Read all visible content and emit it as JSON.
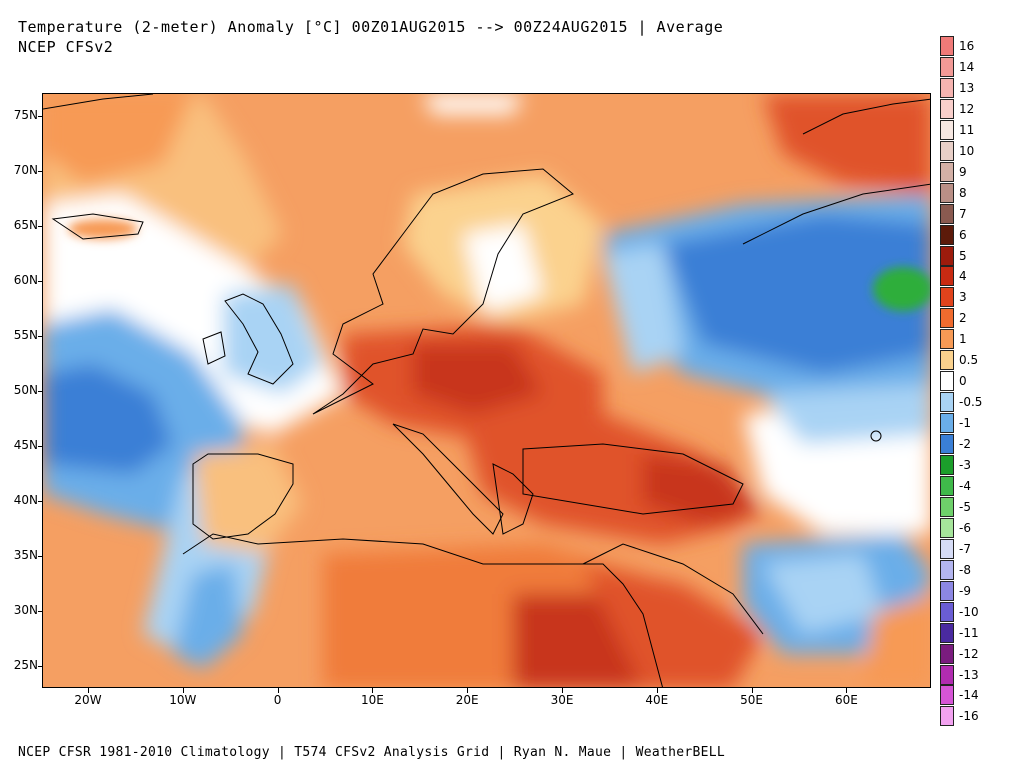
{
  "title_line1": "Temperature (2-meter) Anomaly  [°C] 00Z01AUG2015 --> 00Z24AUG2015 | Average",
  "title_line2": "NCEP CFSv2",
  "footer": "NCEP CFSR 1981-2010 Climatology | T574 CFSv2 Analysis Grid | Ryan N. Maue | WeatherBELL",
  "lat_labels": [
    "75N",
    "70N",
    "65N",
    "60N",
    "55N",
    "50N",
    "45N",
    "40N",
    "35N",
    "30N",
    "25N"
  ],
  "lon_labels": [
    "20W",
    "10W",
    "0",
    "10E",
    "20E",
    "30E",
    "40E",
    "50E",
    "60E"
  ],
  "colorbar": [
    {
      "label": "16",
      "color": "#f07a78"
    },
    {
      "label": "14",
      "color": "#f39a96"
    },
    {
      "label": "13",
      "color": "#f6b4b0"
    },
    {
      "label": "12",
      "color": "#f9cfcb"
    },
    {
      "label": "11",
      "color": "#f7e8e2"
    },
    {
      "label": "10",
      "color": "#e8cfc7"
    },
    {
      "label": "9",
      "color": "#d3b0a6"
    },
    {
      "label": "8",
      "color": "#b98f86"
    },
    {
      "label": "7",
      "color": "#8a5a50"
    },
    {
      "label": "6",
      "color": "#5c1a0a"
    },
    {
      "label": "5",
      "color": "#9c1b0c"
    },
    {
      "label": "4",
      "color": "#c82a12"
    },
    {
      "label": "3",
      "color": "#e1431c"
    },
    {
      "label": "2",
      "color": "#f06b2e"
    },
    {
      "label": "1",
      "color": "#f79a55"
    },
    {
      "label": "0.5",
      "color": "#fbd28e"
    },
    {
      "label": "0",
      "color": "#ffffff"
    },
    {
      "label": "-0.5",
      "color": "#a9d3f4"
    },
    {
      "label": "-1",
      "color": "#6aaee9"
    },
    {
      "label": "-2",
      "color": "#3a7fd6"
    },
    {
      "label": "-3",
      "color": "#1b9e2b"
    },
    {
      "label": "-4",
      "color": "#3fb94a"
    },
    {
      "label": "-5",
      "color": "#6ed06a"
    },
    {
      "label": "-6",
      "color": "#a6e59b"
    },
    {
      "label": "-7",
      "color": "#d6dcf6"
    },
    {
      "label": "-8",
      "color": "#b3b5ef"
    },
    {
      "label": "-9",
      "color": "#8c87e3"
    },
    {
      "label": "-10",
      "color": "#6a5dd4"
    },
    {
      "label": "-11",
      "color": "#4a2aa0"
    },
    {
      "label": "-12",
      "color": "#7a1c7e"
    },
    {
      "label": "-13",
      "color": "#b12cb0"
    },
    {
      "label": "-14",
      "color": "#d655d6"
    },
    {
      "label": "-16",
      "color": "#f2a2f0"
    }
  ],
  "palette": {
    "warm_base": "#f59f62",
    "hot": "#e0522a",
    "very_hot": "#c8341a",
    "mild": "#f9c07e",
    "neutral": "#ffffff",
    "cool": "#a9d3f4",
    "cold": "#6aaee9",
    "colder": "#3a7fd6",
    "green": "#2fae3a",
    "coast": "#000000"
  }
}
